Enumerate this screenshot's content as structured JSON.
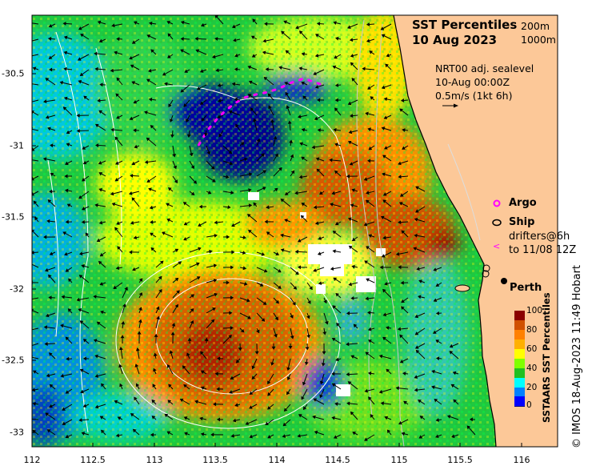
{
  "title": {
    "line1": "SST Percentiles",
    "line2": "10 Aug 2023"
  },
  "contour_legend": {
    "a": "200m",
    "b": "1000m"
  },
  "current_info": {
    "line1": "NRT00 adj. sealevel",
    "line2": "10-Aug 00:00Z",
    "line3": "0.5m/s (1kt 6h)"
  },
  "legend": {
    "argo": "Argo",
    "ship": "Ship",
    "drifters_line1": "drifters@6h",
    "drifters_line2": "to 11/08 12Z"
  },
  "city": {
    "name": "Perth",
    "lon": 115.86,
    "lat": -31.95
  },
  "colorbar": {
    "label": "SSTAARS SST Percentiles",
    "ticks": [
      "0",
      "20",
      "40",
      "60",
      "80",
      "100"
    ]
  },
  "credit": "© IMOS 18-Aug-2023 11:49 Hobart",
  "axes": {
    "x_ticks": [
      "112",
      "112.5",
      "113",
      "113.5",
      "114",
      "114.5",
      "115",
      "115.5",
      "116"
    ],
    "y_ticks": [
      "-30.5",
      "-31",
      "-31.5",
      "-32",
      "-32.5",
      "-33"
    ]
  },
  "colors": {
    "land": "#fcc898",
    "p0": "#00007f",
    "p10": "#0000ff",
    "p20": "#0080ff",
    "p30": "#00ffff",
    "p40": "#20c020",
    "p50": "#80ff00",
    "p60": "#ffff00",
    "p70": "#ffb000",
    "p80": "#ff8000",
    "p90": "#d05000",
    "p100": "#8b0000",
    "argo": "#ff00ff"
  }
}
